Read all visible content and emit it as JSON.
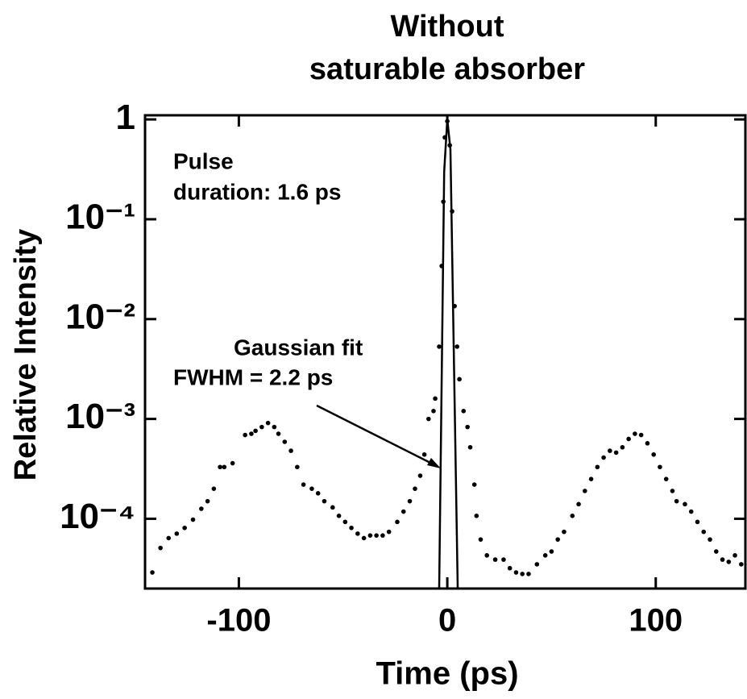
{
  "chart_data": {
    "type": "scatter",
    "title": [
      "Without",
      "saturable absorber"
    ],
    "x_label": "Time (ps)",
    "y_label": "Relative Intensity",
    "annotations": [
      "Pulse",
      "duration: 1.6 ps",
      "Gaussian fit",
      "FWHM = 2.2 ps"
    ],
    "ylog": true,
    "xlim": [
      -145,
      143
    ],
    "ylim": [
      2e-05,
      1.1
    ],
    "xticks": [
      -100,
      0,
      100
    ],
    "yticks": [
      1,
      {
        "value": 0.1,
        "label": "10⁻¹"
      },
      {
        "value": 0.01,
        "label": "10⁻²"
      },
      {
        "value": 0.001,
        "label": "10⁻³"
      },
      {
        "value": 0.0001,
        "label": "10⁻⁴"
      }
    ],
    "series": [
      {
        "type": "scatter",
        "color": "#000000",
        "x": [
          -141.5,
          -137.6,
          -133.7,
          -129.8,
          -126,
          -122,
          -118,
          -115,
          -112,
          -109,
          -107,
          -103,
          -97,
          -94,
          -92,
          -89,
          -86,
          -83,
          -81,
          -78,
          -75,
          -72,
          -69,
          -65,
          -62,
          -59,
          -55,
          -52,
          -49,
          -46,
          -43,
          -40,
          -37,
          -34,
          -31,
          -28,
          -24,
          -21,
          -18,
          -15.5,
          -13,
          -11,
          -9,
          -6.6,
          -5.8,
          -3.9,
          -2.7,
          -1.9,
          -1.2,
          0,
          1.2,
          2.3,
          3.5,
          4.7,
          5.8,
          7.8,
          9.7,
          11,
          13,
          14,
          16,
          19,
          23,
          27,
          30,
          33,
          36,
          39,
          43,
          47,
          50,
          53,
          56,
          60,
          63,
          66,
          69,
          72,
          75,
          78,
          81,
          84,
          87,
          90,
          93,
          96,
          99,
          102,
          105,
          108,
          110,
          114,
          117,
          120,
          123,
          126,
          129,
          132,
          135,
          138,
          141
        ],
        "values": [
          2.9e-05,
          5.1e-05,
          6.4e-05,
          7.1e-05,
          8.1e-05,
          9.8e-05,
          0.000126,
          0.00015,
          0.0002,
          0.00033,
          0.00033,
          0.00036,
          0.00069,
          0.00071,
          0.00076,
          0.00083,
          0.00091,
          0.00083,
          0.00071,
          0.00059,
          0.00048,
          0.00033,
          0.00022,
          0.0002,
          0.00018,
          0.00015,
          0.00013,
          0.000107,
          9.3e-05,
          8.1e-05,
          7.1e-05,
          6.4e-05,
          6.8e-05,
          6.8e-05,
          6.8e-05,
          7.4e-05,
          9.3e-05,
          0.000118,
          0.00015,
          0.0002,
          0.00027,
          0.00044,
          0.001,
          0.0012,
          0.0016,
          0.0053,
          0.034,
          0.15,
          0.66,
          0.96,
          0.55,
          0.12,
          0.0135,
          0.0053,
          0.0025,
          0.0012,
          0.00083,
          0.00052,
          0.00022,
          0.000107,
          6.2e-05,
          4.3e-05,
          3.9e-05,
          3.9e-05,
          3.2e-05,
          2.9e-05,
          2.8e-05,
          2.8e-05,
          3.5e-05,
          4.3e-05,
          4.7e-05,
          6.2e-05,
          7.4e-05,
          0.000107,
          0.00014,
          0.00019,
          0.00025,
          0.00033,
          0.00041,
          0.00048,
          0.00046,
          0.00052,
          0.00063,
          0.00071,
          0.00069,
          0.00057,
          0.00044,
          0.00033,
          0.00025,
          0.00019,
          0.00015,
          0.00014,
          0.000118,
          9.3e-05,
          7.4e-05,
          6.2e-05,
          4.7e-05,
          3.9e-05,
          3.7e-05,
          4.3e-05,
          3.5e-05
        ]
      },
      {
        "type": "line",
        "color": "#000000",
        "x": [
          -3.9,
          -1.5,
          0,
          1.5,
          5
        ],
        "values": [
          2e-05,
          0.3,
          1.0,
          0.5,
          2e-05
        ]
      }
    ]
  }
}
